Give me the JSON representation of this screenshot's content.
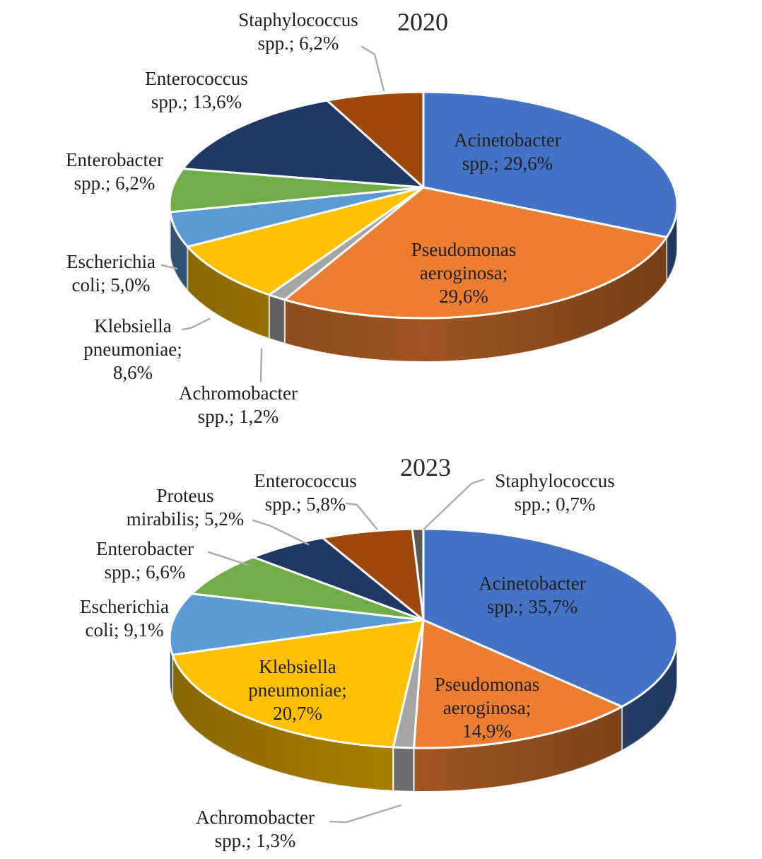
{
  "page": {
    "background": "#FFFFFF"
  },
  "chart_data": [
    {
      "type": "pie",
      "style": "3d",
      "title": "2020",
      "unit": "%",
      "decimal_separator": ",",
      "legend": "none",
      "slices": [
        {
          "name": "Acinetobacter spp.",
          "value": 29.6,
          "color": "#4472C4",
          "label_lines": [
            "Acinetobacter",
            "spp.; 29,6%"
          ]
        },
        {
          "name": "Pseudomonas aeroginosa",
          "value": 29.6,
          "color": "#ED7D31",
          "label_lines": [
            "Pseudomonas",
            "aeroginosa;",
            "29,6%"
          ]
        },
        {
          "name": "Achromobacter spp.",
          "value": 1.2,
          "color": "#A5A5A5",
          "label_lines": [
            "Achromobacter",
            "spp.; 1,2%"
          ]
        },
        {
          "name": "Klebsiella pneumoniae",
          "value": 8.6,
          "color": "#FFC000",
          "label_lines": [
            "Klebsiella",
            "pneumoniae;",
            "8,6%"
          ]
        },
        {
          "name": "Escherichia coli",
          "value": 5.0,
          "color": "#5B9BD5",
          "label_lines": [
            "Escherichia",
            "coli; 5,0%"
          ]
        },
        {
          "name": "Enterobacter spp.",
          "value": 6.2,
          "color": "#70AD47",
          "label_lines": [
            "Enterobacter",
            "spp.; 6,2%"
          ]
        },
        {
          "name": "Enterococcus spp.",
          "value": 13.6,
          "color": "#1F3864",
          "label_lines": [
            "Enterococcus",
            "spp.; 13,6%"
          ]
        },
        {
          "name": "Staphylococcus spp.",
          "value": 6.2,
          "color": "#9E480E",
          "label_lines": [
            "Staphylococcus",
            "spp.; 6,2%"
          ]
        }
      ]
    },
    {
      "type": "pie",
      "style": "3d",
      "title": "2023",
      "unit": "%",
      "decimal_separator": ",",
      "legend": "none",
      "slices": [
        {
          "name": "Acinetobacter spp.",
          "value": 35.7,
          "color": "#4472C4",
          "label_lines": [
            "Acinetobacter",
            "spp.; 35,7%"
          ]
        },
        {
          "name": "Pseudomonas aeroginosa",
          "value": 14.9,
          "color": "#ED7D31",
          "label_lines": [
            "Pseudomonas",
            "aeroginosa;",
            "14,9%"
          ]
        },
        {
          "name": "Achromobacter spp.",
          "value": 1.3,
          "color": "#A5A5A5",
          "label_lines": [
            "Achromobacter",
            "spp.; 1,3%"
          ]
        },
        {
          "name": "Klebsiella pneumoniae",
          "value": 20.7,
          "color": "#FFC000",
          "label_lines": [
            "Klebsiella",
            "pneumoniae;",
            "20,7%"
          ]
        },
        {
          "name": "Escherichia coli",
          "value": 9.1,
          "color": "#5B9BD5",
          "label_lines": [
            "Escherichia",
            "coli; 9,1%"
          ]
        },
        {
          "name": "Enterobacter spp.",
          "value": 6.6,
          "color": "#70AD47",
          "label_lines": [
            "Enterobacter",
            "spp.; 6,6%"
          ]
        },
        {
          "name": "Proteus mirabilis",
          "value": 5.2,
          "color": "#1F3864",
          "label_lines": [
            "Proteus",
            "mirabilis; 5,2%"
          ]
        },
        {
          "name": "Enterococcus spp.",
          "value": 5.8,
          "color": "#9E480E",
          "label_lines": [
            "Enterococcus",
            "spp.; 5,8%"
          ]
        },
        {
          "name": "Staphylococcus spp.",
          "value": 0.7,
          "color": "#595959",
          "label_lines": [
            "Staphylococcus",
            "spp.; 0,7%"
          ]
        }
      ]
    }
  ]
}
